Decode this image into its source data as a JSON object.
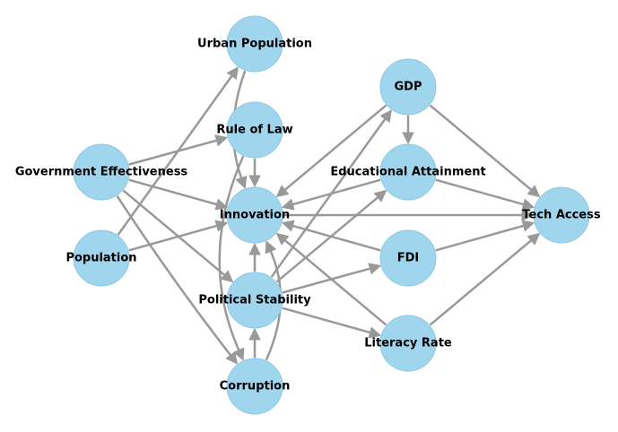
{
  "colors": {
    "node_fill": "#9fd5ed",
    "edge": "#999999",
    "label": "#000000"
  },
  "nodes": [
    {
      "id": "urban_population",
      "label": "Urban Population"
    },
    {
      "id": "rule_of_law",
      "label": "Rule of Law"
    },
    {
      "id": "government_effectiveness",
      "label": "Government Effectiveness"
    },
    {
      "id": "population",
      "label": "Population"
    },
    {
      "id": "innovation",
      "label": "Innovation"
    },
    {
      "id": "political_stability",
      "label": "Political Stability"
    },
    {
      "id": "corruption",
      "label": "Corruption"
    },
    {
      "id": "gdp",
      "label": "GDP"
    },
    {
      "id": "educational_attainment",
      "label": "Educational Attainment"
    },
    {
      "id": "fdi",
      "label": "FDI"
    },
    {
      "id": "literacy_rate",
      "label": "Literacy Rate"
    },
    {
      "id": "tech_access",
      "label": "Tech Access"
    }
  ],
  "edges": [
    {
      "from": "population",
      "to": "urban_population"
    },
    {
      "from": "population",
      "to": "innovation"
    },
    {
      "from": "government_effectiveness",
      "to": "rule_of_law"
    },
    {
      "from": "government_effectiveness",
      "to": "innovation"
    },
    {
      "from": "government_effectiveness",
      "to": "political_stability"
    },
    {
      "from": "government_effectiveness",
      "to": "corruption"
    },
    {
      "from": "urban_population",
      "to": "innovation"
    },
    {
      "from": "rule_of_law",
      "to": "innovation"
    },
    {
      "from": "rule_of_law",
      "to": "corruption"
    },
    {
      "from": "political_stability",
      "to": "innovation"
    },
    {
      "from": "political_stability",
      "to": "gdp"
    },
    {
      "from": "political_stability",
      "to": "educational_attainment"
    },
    {
      "from": "political_stability",
      "to": "fdi"
    },
    {
      "from": "political_stability",
      "to": "literacy_rate"
    },
    {
      "from": "corruption",
      "to": "political_stability"
    },
    {
      "from": "corruption",
      "to": "innovation"
    },
    {
      "from": "gdp",
      "to": "innovation"
    },
    {
      "from": "gdp",
      "to": "educational_attainment"
    },
    {
      "from": "gdp",
      "to": "tech_access"
    },
    {
      "from": "educational_attainment",
      "to": "innovation"
    },
    {
      "from": "educational_attainment",
      "to": "tech_access"
    },
    {
      "from": "fdi",
      "to": "innovation"
    },
    {
      "from": "fdi",
      "to": "tech_access"
    },
    {
      "from": "literacy_rate",
      "to": "innovation"
    },
    {
      "from": "literacy_rate",
      "to": "tech_access"
    },
    {
      "from": "innovation",
      "to": "tech_access"
    }
  ]
}
